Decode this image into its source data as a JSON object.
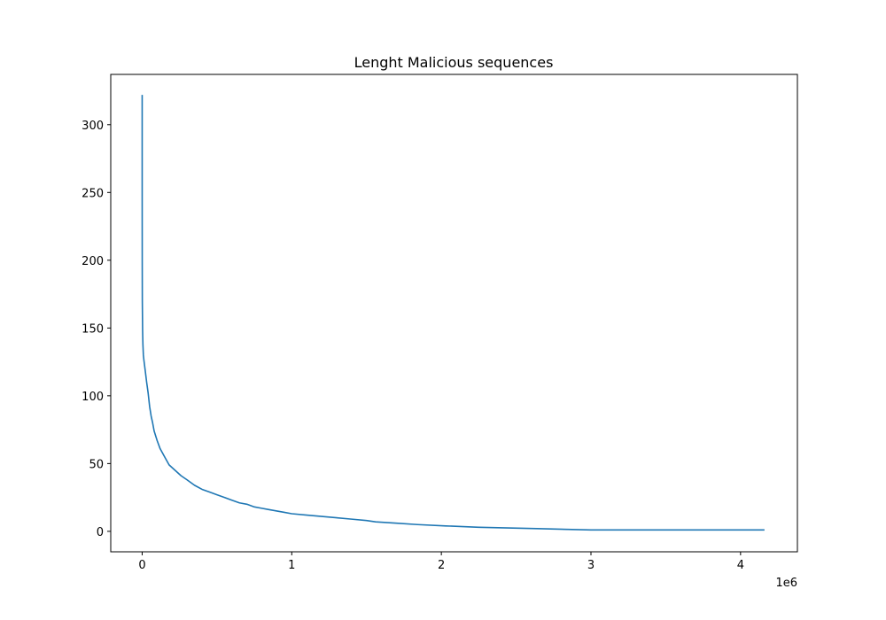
{
  "chart_data": {
    "type": "line",
    "title": "Lenght Malicious sequences",
    "xlabel": "",
    "ylabel": "",
    "x_offset_label": "1e6",
    "xlim": [
      -0.21,
      4.38
    ],
    "ylim": [
      -15.1,
      337.1
    ],
    "x_ticks": [
      0,
      1,
      2,
      3,
      4
    ],
    "x_tick_labels": [
      "0",
      "1",
      "2",
      "3",
      "4"
    ],
    "y_ticks": [
      0,
      50,
      100,
      150,
      200,
      250,
      300
    ],
    "y_tick_labels": [
      "0",
      "50",
      "100",
      "150",
      "200",
      "250",
      "300"
    ],
    "grid": false,
    "legend": "none",
    "color": "#1f77b4",
    "series": [
      {
        "x": [
          0,
          0.0001,
          0.0004,
          0.001,
          0.003,
          0.005,
          0.008,
          0.012,
          0.02,
          0.03,
          0.04,
          0.05,
          0.06,
          0.07,
          0.08,
          0.1,
          0.12,
          0.15,
          0.18,
          0.22,
          0.26,
          0.3,
          0.35,
          0.4,
          0.45,
          0.5,
          0.55,
          0.6,
          0.65,
          0.7,
          0.75,
          0.8,
          0.85,
          0.9,
          0.95,
          1.0,
          1.1,
          1.2,
          1.3,
          1.4,
          1.5,
          1.56,
          1.7,
          1.84,
          2.03,
          2.25,
          2.64,
          3.0,
          3.5,
          4.0,
          4.16
        ],
        "y": [
          322,
          250,
          200,
          170,
          148,
          138,
          130,
          126,
          119,
          110,
          102,
          92,
          85,
          80,
          74,
          67,
          61,
          55,
          49,
          45,
          41,
          38,
          34,
          31,
          29,
          27,
          25,
          23,
          21,
          20,
          18,
          17,
          16,
          15,
          14,
          13,
          12,
          11,
          10,
          9,
          8,
          7,
          6,
          5,
          4,
          3,
          2,
          1,
          1,
          1,
          1
        ]
      }
    ]
  }
}
